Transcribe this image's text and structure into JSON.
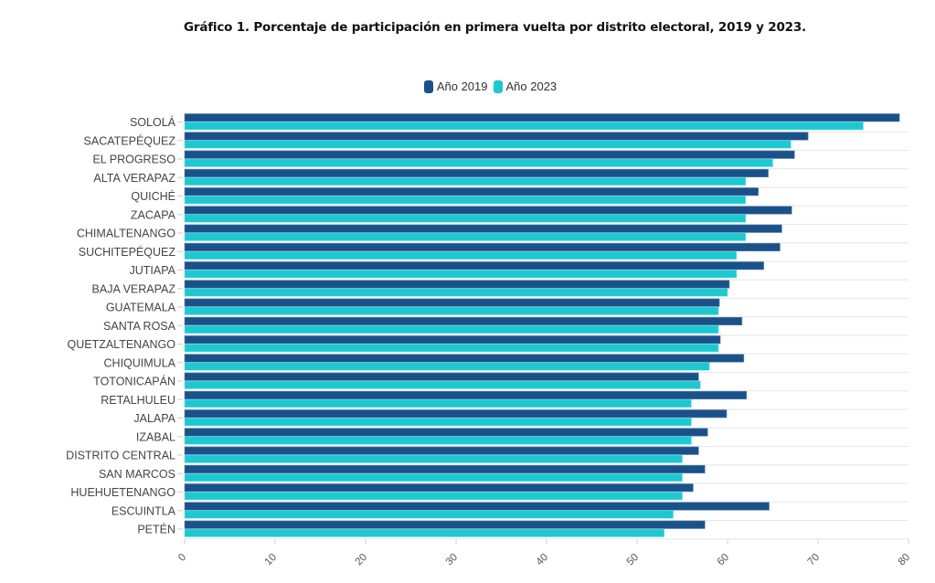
{
  "chart_data": {
    "type": "bar",
    "orientation": "horizontal",
    "title": "Gráfico 1. Porcentaje de participación en primera vuelta por distrito electoral, 2019 y 2023.",
    "xlabel": "",
    "ylabel": "",
    "xlim": [
      0,
      80
    ],
    "x_ticks": [
      0,
      10,
      20,
      30,
      40,
      50,
      60,
      70,
      80
    ],
    "grid": true,
    "legend_position": "top-center",
    "categories": [
      "SOLOLÁ",
      "SACATEPÉQUEZ",
      "EL PROGRESO",
      "ALTA VERAPAZ",
      "QUICHÉ",
      "ZACAPA",
      "CHIMALTENANGO",
      "SUCHITEPÉQUEZ",
      "JUTIAPA",
      "BAJA VERAPAZ",
      "GUATEMALA",
      "SANTA ROSA",
      "QUETZALTENANGO",
      "CHIQUIMULA",
      "TOTONICAPÁN",
      "RETALHULEU",
      "JALAPA",
      "IZABAL",
      "DISTRITO CENTRAL",
      "SAN MARCOS",
      "HUEHUETENANGO",
      "ESCUINTLA",
      "PETÉN"
    ],
    "series": [
      {
        "name": "Año 2019",
        "color": "#1a5189",
        "values": [
          79.0,
          68.9,
          67.4,
          64.5,
          63.4,
          67.1,
          66.0,
          65.8,
          64.0,
          60.2,
          59.1,
          61.6,
          59.2,
          61.8,
          56.8,
          62.1,
          59.9,
          57.8,
          56.8,
          57.5,
          56.2,
          64.6,
          57.5
        ]
      },
      {
        "name": "Año 2023",
        "color": "#1ec8d0",
        "values": [
          75.0,
          67.0,
          65.0,
          62.0,
          62.0,
          62.0,
          62.0,
          61.0,
          61.0,
          60.0,
          59.0,
          59.0,
          59.0,
          58.0,
          57.0,
          56.0,
          56.0,
          56.0,
          55.0,
          55.0,
          55.0,
          54.0,
          53.0
        ]
      }
    ]
  }
}
